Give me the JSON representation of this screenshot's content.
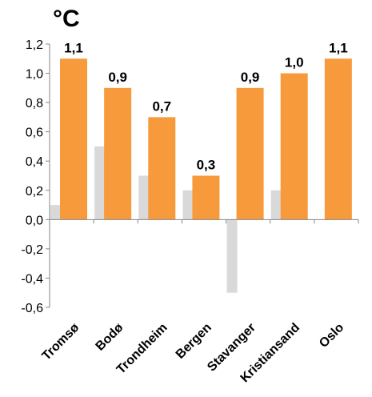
{
  "chart_data": {
    "type": "bar",
    "unit": "°C",
    "categories": [
      "Tromsø",
      "Bodø",
      "Trondheim",
      "Bergen",
      "Stavanger",
      "Kristiansand",
      "Oslo"
    ],
    "series": [
      {
        "values": [
          0.1,
          0.5,
          0.3,
          0.2,
          -0.5,
          0.2,
          null
        ],
        "color": "#d9d9d9"
      },
      {
        "values": [
          1.1,
          0.9,
          0.7,
          0.3,
          0.9,
          1.0,
          1.1
        ],
        "color": "#f79a3c"
      }
    ],
    "data_labels": [
      "1,1",
      "0,9",
      "0,7",
      "0,3",
      "0,9",
      "1,0",
      "1,1"
    ],
    "ylim": [
      -0.6,
      1.2
    ],
    "yticks": [
      -0.6,
      -0.4,
      -0.2,
      0.0,
      0.2,
      0.4,
      0.6,
      0.8,
      1.0,
      1.2
    ],
    "ytick_labels": [
      "-0,6",
      "-0,4",
      "-0,2",
      "0,0",
      "0,2",
      "0,4",
      "0,6",
      "0,8",
      "1,0",
      "1,2"
    ],
    "grid": false,
    "legend": "none"
  }
}
